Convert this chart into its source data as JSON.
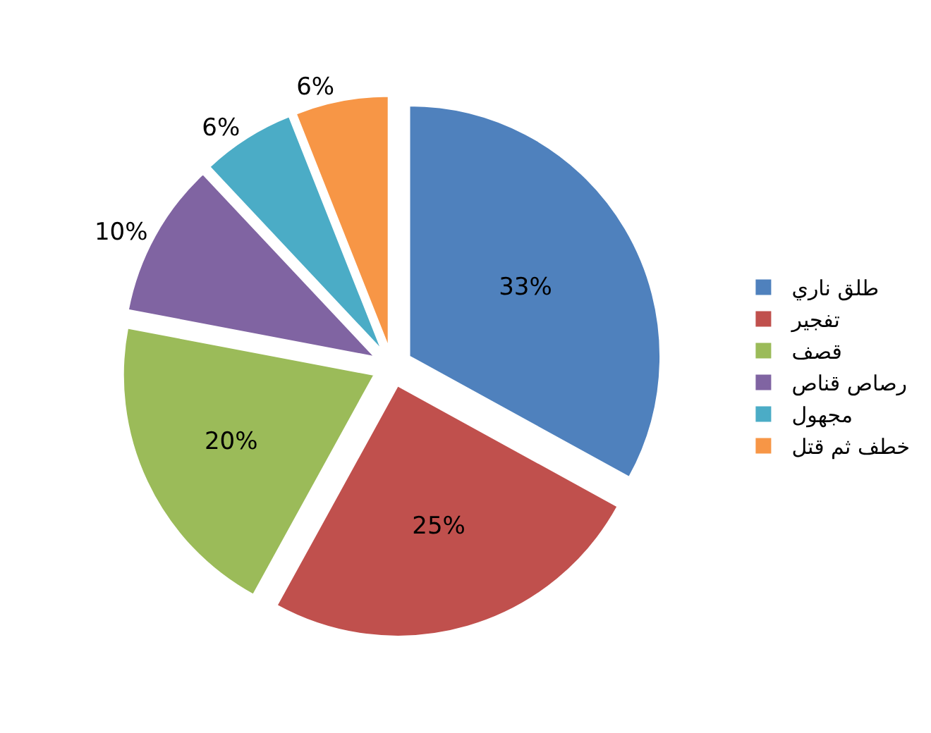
{
  "chart_data": {
    "type": "pie",
    "categories": [
      "طلق ناري",
      "تفجير",
      "قصف",
      "رصاص قناص",
      "مجهول",
      "خطف ثم قتل"
    ],
    "values": [
      33,
      25,
      20,
      10,
      6,
      6
    ],
    "colors": [
      "#4f81bd",
      "#c0504d",
      "#9bbb59",
      "#8064a2",
      "#4bacc6",
      "#f79646"
    ],
    "value_labels": [
      "33%",
      "25%",
      "20%",
      "10%",
      "6%",
      "6%"
    ],
    "legend": "right"
  }
}
